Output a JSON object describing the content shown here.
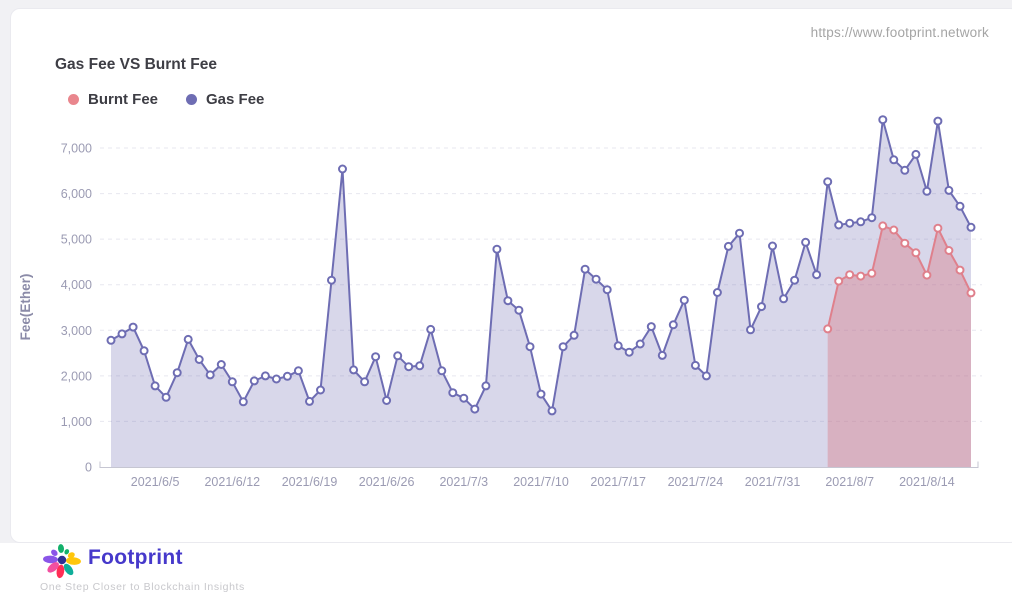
{
  "page": {
    "url_watermark": "https://www.footprint.network"
  },
  "card": {
    "title": "Gas Fee VS Burnt Fee",
    "legend": [
      {
        "label": "Burnt Fee",
        "color": "#e9868d"
      },
      {
        "label": "Gas Fee",
        "color": "#6e6db3"
      }
    ]
  },
  "chart_data": {
    "type": "area",
    "title": "Gas Fee VS Burnt Fee",
    "xlabel": "",
    "ylabel": "Fee(Ether)",
    "ylim": [
      0,
      7800
    ],
    "yticks": [
      0,
      1000,
      2000,
      3000,
      4000,
      5000,
      6000,
      7000
    ],
    "grid": "horizontal-dashed",
    "legend_position": "top-left",
    "x_start_date": "2021/6/1",
    "x_end_date": "2021/8/18",
    "x_ticks": [
      {
        "index": 4,
        "label": "2021/6/5"
      },
      {
        "index": 11,
        "label": "2021/6/12"
      },
      {
        "index": 18,
        "label": "2021/6/19"
      },
      {
        "index": 25,
        "label": "2021/6/26"
      },
      {
        "index": 32,
        "label": "2021/7/3"
      },
      {
        "index": 39,
        "label": "2021/7/10"
      },
      {
        "index": 46,
        "label": "2021/7/17"
      },
      {
        "index": 53,
        "label": "2021/7/24"
      },
      {
        "index": 60,
        "label": "2021/7/31"
      },
      {
        "index": 67,
        "label": "2021/8/7"
      },
      {
        "index": 74,
        "label": "2021/8/14"
      }
    ],
    "series": [
      {
        "name": "Gas Fee",
        "color": "#6e6db3",
        "fill": "rgba(110,109,179,0.27)",
        "start_index": 0,
        "values": [
          2780,
          2920,
          3070,
          2550,
          1780,
          1530,
          2070,
          2800,
          2360,
          2020,
          2250,
          1870,
          1430,
          1890,
          2000,
          1930,
          1990,
          2110,
          1440,
          1690,
          4100,
          6540,
          2130,
          1870,
          2420,
          1460,
          2440,
          2200,
          2220,
          3020,
          2110,
          1630,
          1510,
          1270,
          1780,
          4780,
          3650,
          3440,
          2640,
          1600,
          1230,
          2640,
          2890,
          4340,
          4120,
          3890,
          2660,
          2520,
          2700,
          3080,
          2450,
          3120,
          3660,
          2230,
          2000,
          3830,
          4840,
          5130,
          3010,
          3520,
          4850,
          3690,
          4100,
          4930,
          4220,
          6260,
          5310,
          5350,
          5380,
          5470,
          7620,
          6740,
          6510,
          6860,
          6050,
          7590,
          6070,
          5720,
          5260
        ]
      },
      {
        "name": "Burnt Fee",
        "color": "#df808c",
        "fill": "rgba(217,123,137,0.42)",
        "start_index": 65,
        "values": [
          3030,
          4080,
          4220,
          4190,
          4250,
          5290,
          5200,
          4910,
          4700,
          4210,
          5240,
          4750,
          4320,
          3820
        ]
      }
    ]
  },
  "footer": {
    "brand": "Footprint",
    "brand_color": "#4639cb",
    "tagline": "One Step Closer to Blockchain Insights",
    "logo_center_color": "#2e3192",
    "logo_petals": [
      {
        "rot": 183,
        "dist": 11.5,
        "rx": 7.5,
        "ry": 3.8,
        "color": "#8a55e8"
      },
      {
        "rot": -137,
        "dist": 10.5,
        "rx": 3.6,
        "ry": 2.8,
        "color": "#8a55e8"
      },
      {
        "rot": -95,
        "dist": 11.5,
        "rx": 4.4,
        "ry": 3.0,
        "color": "#13b06b"
      },
      {
        "rot": -60,
        "dist": 9.5,
        "rx": 2.8,
        "ry": 2.2,
        "color": "#13b06b"
      },
      {
        "rot": -27,
        "dist": 10.5,
        "rx": 3.6,
        "ry": 2.8,
        "color": "#ffc60b"
      },
      {
        "rot": 5,
        "dist": 11.5,
        "rx": 7.5,
        "ry": 3.8,
        "color": "#ffc60b"
      },
      {
        "rot": 55,
        "dist": 11.5,
        "rx": 6.5,
        "ry": 3.6,
        "color": "#0fae9a"
      },
      {
        "rot": 98,
        "dist": 11.5,
        "rx": 6.8,
        "ry": 3.8,
        "color": "#ff2d55"
      },
      {
        "rot": 140,
        "dist": 11.5,
        "rx": 6.8,
        "ry": 3.8,
        "color": "#f24fa0"
      }
    ]
  }
}
